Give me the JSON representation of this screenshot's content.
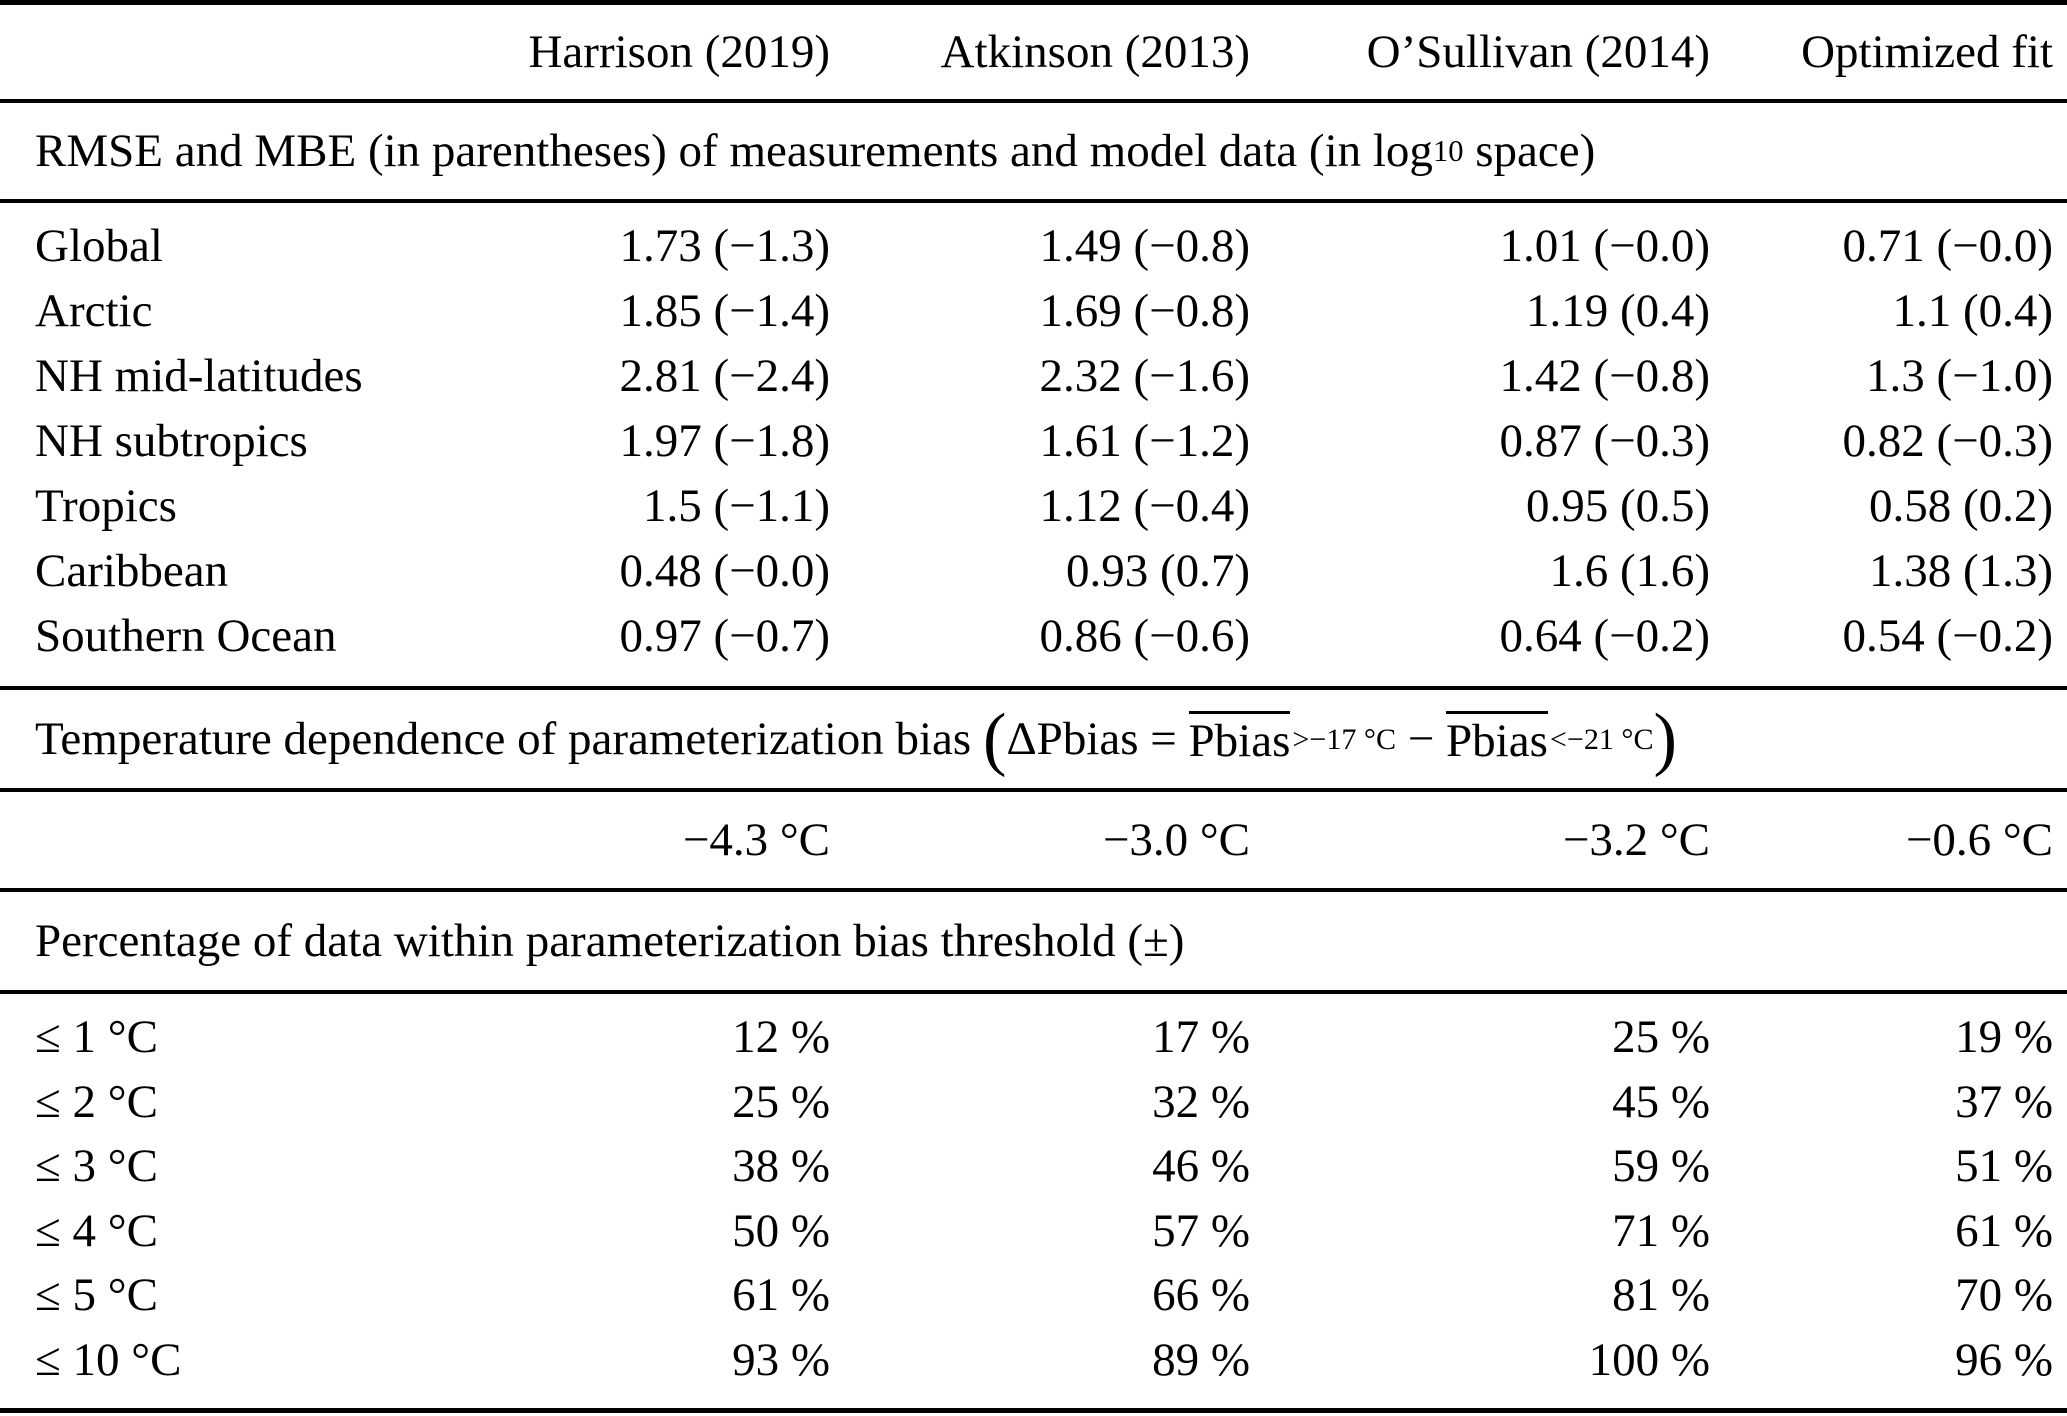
{
  "table": {
    "header": {
      "col_region": "",
      "col_harrison": "Harrison (2019)",
      "col_atkinson": "Atkinson (2013)",
      "col_osullivan": "O’Sullivan (2014)",
      "col_optimized": "Optimized fit"
    },
    "section_rmse": {
      "title_before_sub": "RMSE and MBE (in parentheses) of measurements and model data (in log",
      "title_sub": "10",
      "title_after_sub": " space)",
      "rows": [
        {
          "label": "Global",
          "values": [
            "1.73 (−1.3)",
            "1.49 (−0.8)",
            "1.01 (−0.0)",
            "0.71 (−0.0)"
          ]
        },
        {
          "label": "Arctic",
          "values": [
            "1.85 (−1.4)",
            "1.69 (−0.8)",
            "1.19 (0.4)",
            "1.1 (0.4)"
          ]
        },
        {
          "label": "NH mid-latitudes",
          "values": [
            "2.81 (−2.4)",
            "2.32 (−1.6)",
            "1.42 (−0.8)",
            "1.3 (−1.0)"
          ]
        },
        {
          "label": "NH subtropics",
          "values": [
            "1.97 (−1.8)",
            "1.61 (−1.2)",
            "0.87 (−0.3)",
            "0.82 (−0.3)"
          ]
        },
        {
          "label": "Tropics",
          "values": [
            "1.5 (−1.1)",
            "1.12 (−0.4)",
            "0.95 (0.5)",
            "0.58 (0.2)"
          ]
        },
        {
          "label": "Caribbean",
          "values": [
            "0.48 (−0.0)",
            "0.93 (0.7)",
            "1.6 (1.6)",
            "1.38 (1.3)"
          ]
        },
        {
          "label": "Southern Ocean",
          "values": [
            "0.97 (−0.7)",
            "0.86 (−0.6)",
            "0.64 (−0.2)",
            "0.54 (−0.2)"
          ]
        }
      ]
    },
    "section_tdep": {
      "title_text": "Temperature dependence of parameterization bias",
      "formula": {
        "open_paren": "(",
        "lhs": "ΔPbias = ",
        "pbias1": "Pbias",
        "sub1": ">−17 °C",
        "minus": " − ",
        "pbias2": "Pbias",
        "sub2": "<−21 °C",
        "close_paren": ")"
      },
      "values": [
        "−4.3 °C",
        "−3.0 °C",
        "−3.2 °C",
        "−0.6 °C"
      ]
    },
    "section_pct": {
      "title": "Percentage of data within parameterization bias threshold (±)",
      "rows": [
        {
          "label": "≤ 1 °C",
          "values": [
            "12 %",
            "17 %",
            "25 %",
            "19 %"
          ]
        },
        {
          "label": "≤ 2 °C",
          "values": [
            "25 %",
            "32 %",
            "45 %",
            "37 %"
          ]
        },
        {
          "label": "≤ 3 °C",
          "values": [
            "38 %",
            "46 %",
            "59 %",
            "51 %"
          ]
        },
        {
          "label": "≤ 4 °C",
          "values": [
            "50 %",
            "57 %",
            "71 %",
            "61 %"
          ]
        },
        {
          "label": "≤ 5 °C",
          "values": [
            "61 %",
            "66 %",
            "81 %",
            "70 %"
          ]
        },
        {
          "label": "≤ 10 °C",
          "values": [
            "93 %",
            "89 %",
            "100 %",
            "96 %"
          ]
        }
      ]
    }
  }
}
